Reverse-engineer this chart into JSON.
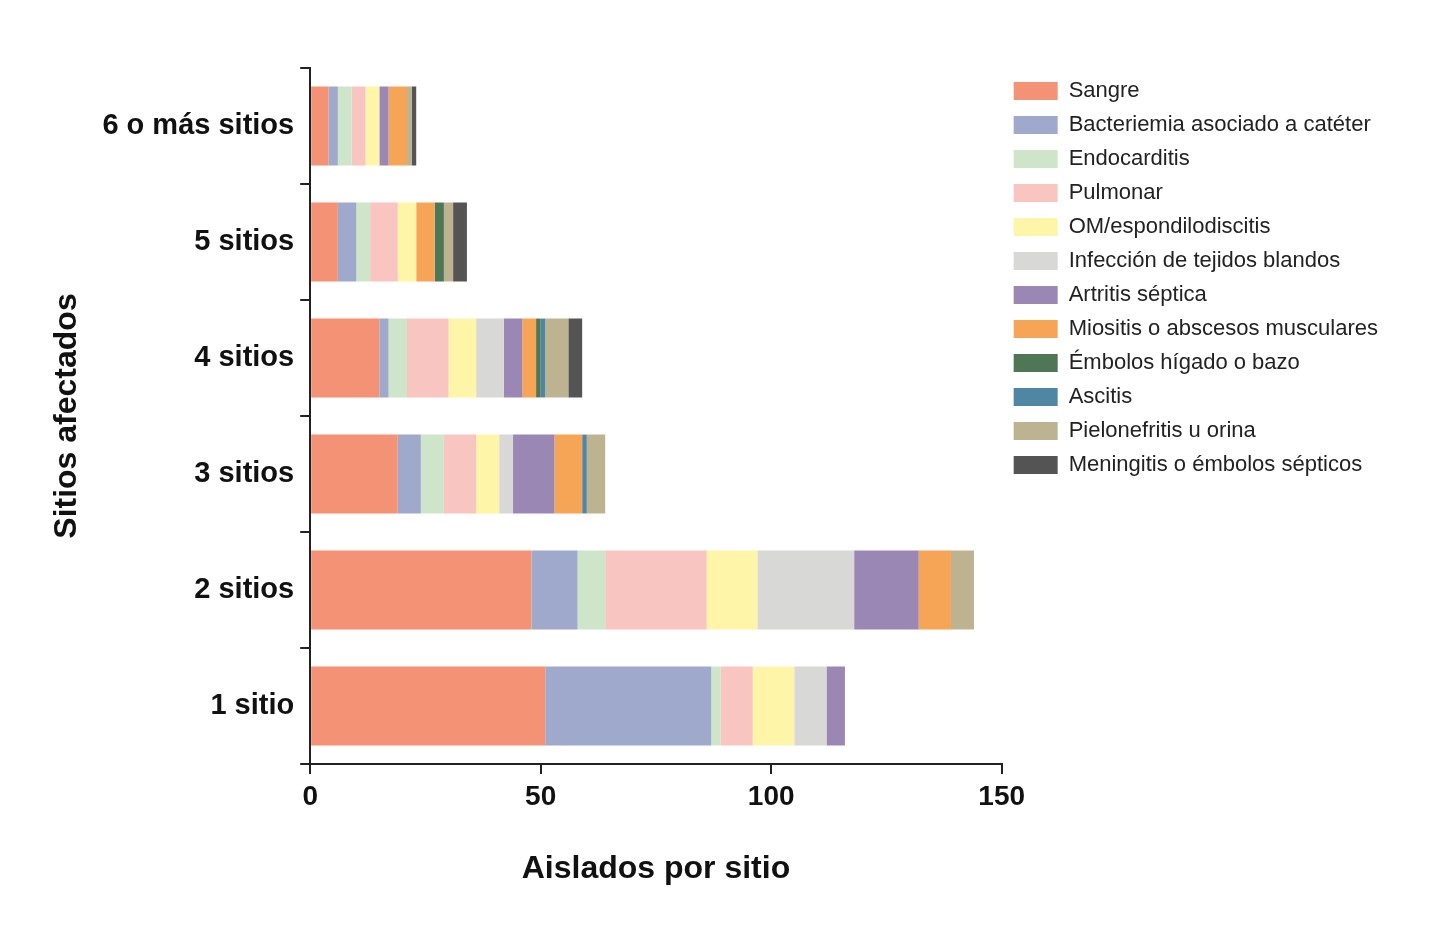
{
  "chart_data": {
    "type": "bar",
    "orientation": "horizontal",
    "stacked": true,
    "xlabel": "Aislados por sitio",
    "ylabel": "Sitios afectados",
    "categories": [
      "6 o más sitios",
      "5 sitios",
      "4 sitios",
      "3 sitios",
      "2 sitios",
      "1 sitio"
    ],
    "xlim": [
      0,
      150
    ],
    "xticks": [
      0,
      50,
      100,
      150
    ],
    "grid": false,
    "legend": "top right",
    "series": [
      {
        "name": "Sangre",
        "color": "#f39274",
        "values": [
          4,
          6,
          15,
          19,
          48,
          51
        ]
      },
      {
        "name": "Bacteriemia asociado a catéter",
        "color": "#9ea9cc",
        "values": [
          2,
          4,
          2,
          5,
          10,
          36
        ]
      },
      {
        "name": "Endocarditis",
        "color": "#cfe5c9",
        "values": [
          3,
          3,
          4,
          5,
          6,
          2
        ]
      },
      {
        "name": "Pulmonar",
        "color": "#f8c5c1",
        "values": [
          3,
          6,
          9,
          7,
          22,
          7
        ]
      },
      {
        "name": "OM/espondilodiscitis",
        "color": "#fff5a8",
        "values": [
          3,
          4,
          6,
          5,
          11,
          9
        ]
      },
      {
        "name": "Infección de tejidos blandos",
        "color": "#d8d8d6",
        "values": [
          0,
          0,
          6,
          3,
          21,
          7
        ]
      },
      {
        "name": "Artritis séptica",
        "color": "#9b87b4",
        "values": [
          2,
          0,
          4,
          9,
          14,
          4
        ]
      },
      {
        "name": "Miositis o abscesos musculares",
        "color": "#f5a555",
        "values": [
          4,
          4,
          3,
          6,
          7,
          0
        ]
      },
      {
        "name": "Émbolos hígado o bazo",
        "color": "#4f7755",
        "values": [
          0,
          2,
          1,
          0,
          0,
          0
        ]
      },
      {
        "name": "Ascitis",
        "color": "#4f86a3",
        "values": [
          0,
          0,
          1,
          1,
          0,
          0
        ]
      },
      {
        "name": "Pielonefritis u orina",
        "color": "#bdb391",
        "values": [
          1,
          2,
          5,
          4,
          5,
          0
        ]
      },
      {
        "name": "Meningitis o émbolos sépticos",
        "color": "#545454",
        "values": [
          1,
          3,
          3,
          0,
          0,
          0
        ]
      }
    ]
  }
}
